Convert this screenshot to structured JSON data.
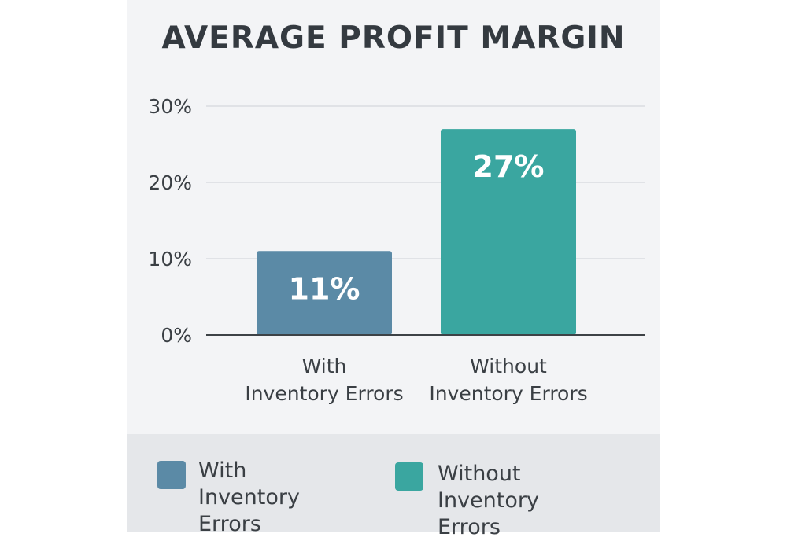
{
  "chart_data": {
    "type": "bar",
    "title": "AVERAGE PROFIT MARGIN",
    "categories": [
      "With|Inventory Errors",
      "Without|Inventory Errors"
    ],
    "values": [
      11,
      27
    ],
    "data_labels": [
      "11%",
      "27%"
    ],
    "colors": [
      "#5b8aa6",
      "#3aa6a0"
    ],
    "ylim": [
      0,
      30
    ],
    "yticks": [
      0,
      10,
      20,
      30
    ],
    "ytick_labels": [
      "0%",
      "10%",
      "20%",
      "30%"
    ],
    "xlabel": "",
    "ylabel": "",
    "grid": true,
    "legend": {
      "placement": "bottom",
      "entries": [
        {
          "label": "With Inventory|Errors",
          "color": "#5b8aa6"
        },
        {
          "label": "Without Inventory|Errors",
          "color": "#3aa6a0"
        }
      ]
    }
  }
}
